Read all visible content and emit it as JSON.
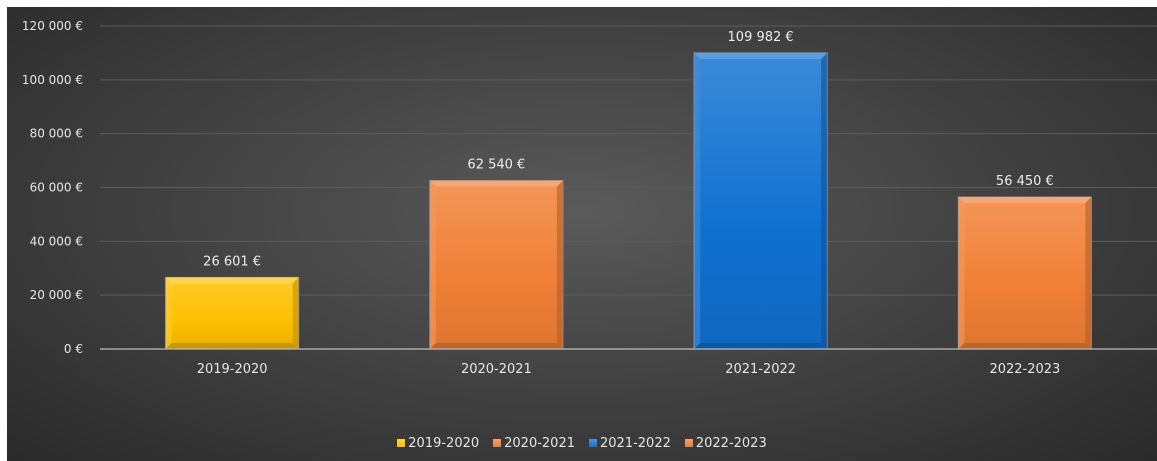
{
  "chart_data": {
    "type": "bar",
    "categories": [
      "2019-2020",
      "2020-2021",
      "2021-2022",
      "2022-2023"
    ],
    "values": [
      26601,
      62540,
      109982,
      56450
    ],
    "data_labels": [
      "26 601 €",
      "62 540 €",
      "109 982 €",
      "56 450 €"
    ],
    "ylim": [
      0,
      120000
    ],
    "yticks": [
      0,
      20000,
      40000,
      60000,
      80000,
      100000,
      120000
    ],
    "ytick_labels": [
      "0 €",
      "20 000 €",
      "40 000 €",
      "60 000 €",
      "80 000 €",
      "100 000 €",
      "120 000 €"
    ],
    "grid": true,
    "legend_position": "bottom",
    "legend": [
      "2019-2020",
      "2020-2021",
      "2021-2022",
      "2022-2023"
    ],
    "colors": [
      "#FFC000",
      "#F07F35",
      "#1070D0",
      "#F07F35"
    ],
    "background": "#444444"
  }
}
